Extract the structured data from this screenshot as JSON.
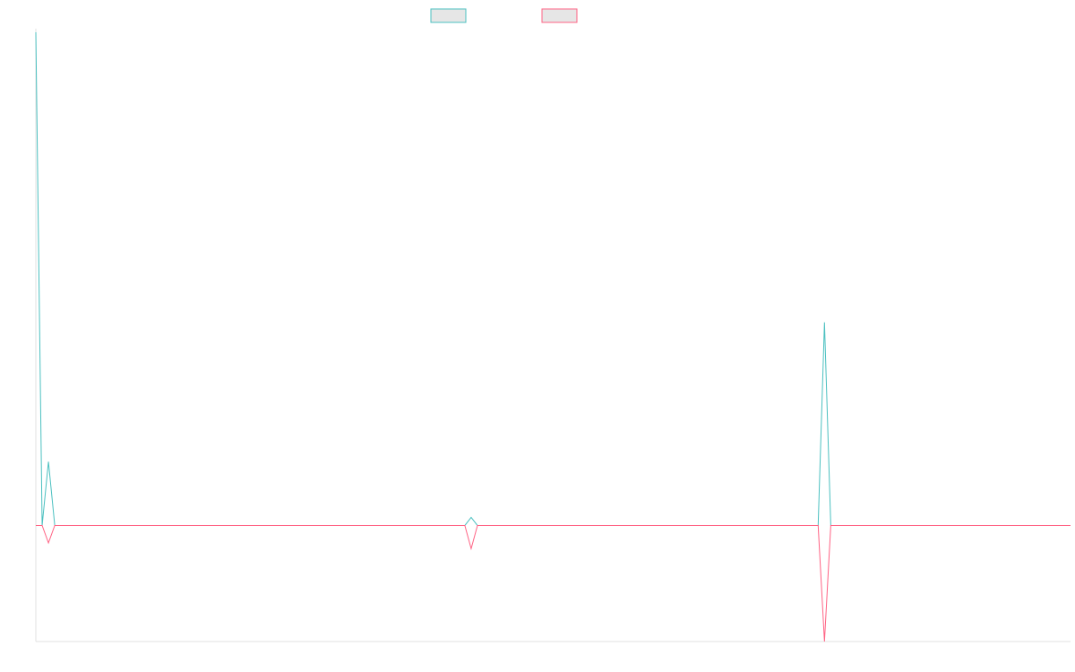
{
  "chart_data": {
    "type": "line",
    "title": "",
    "xlabel": "",
    "ylabel": "",
    "x": [
      0,
      1,
      2,
      3,
      4,
      5,
      6,
      7,
      8,
      9,
      10,
      11,
      12,
      13,
      14,
      15,
      16,
      17,
      18,
      19,
      20,
      21,
      22,
      23,
      24,
      25,
      26,
      27,
      28,
      29,
      30,
      31,
      32,
      33,
      34,
      35,
      36,
      37,
      38,
      39,
      40,
      41,
      42,
      43,
      44,
      45,
      46,
      47,
      48,
      49,
      50,
      51,
      52,
      53,
      54,
      55,
      56,
      57,
      58,
      59,
      60,
      61,
      62,
      63,
      64,
      65,
      66,
      67,
      68,
      69,
      70,
      71,
      72,
      73,
      74,
      75,
      76,
      77,
      78,
      79,
      80,
      81,
      82,
      83,
      84,
      85,
      86,
      87,
      88,
      89,
      90,
      91,
      92,
      93,
      94,
      95,
      96,
      97,
      98,
      99,
      100,
      101,
      102,
      103,
      104,
      105,
      106,
      107,
      108,
      109,
      110,
      111,
      112,
      113,
      114,
      115,
      116,
      117,
      118,
      119,
      120,
      121,
      122,
      123,
      124,
      125,
      126,
      127,
      128,
      129,
      130,
      131,
      132,
      133,
      134,
      135,
      136,
      137,
      138,
      139,
      140,
      141,
      142,
      143,
      144,
      145,
      146,
      147,
      148,
      149,
      150,
      151,
      152,
      153,
      154,
      155,
      156,
      157,
      158,
      159,
      160,
      161,
      162,
      163,
      164
    ],
    "ylim": [
      -100,
      425
    ],
    "xlim": [
      0,
      164
    ],
    "grid": false,
    "legend": "top-center",
    "series": [
      {
        "color": "#4bc0c0",
        "values": [
          425,
          0,
          55,
          0,
          0,
          0,
          0,
          0,
          0,
          0,
          0,
          0,
          0,
          0,
          0,
          0,
          0,
          0,
          0,
          0,
          0,
          0,
          0,
          0,
          0,
          0,
          0,
          0,
          0,
          0,
          0,
          0,
          0,
          0,
          0,
          0,
          0,
          0,
          0,
          0,
          0,
          0,
          0,
          0,
          0,
          0,
          0,
          0,
          0,
          0,
          0,
          0,
          0,
          0,
          0,
          0,
          0,
          0,
          0,
          0,
          0,
          0,
          0,
          0,
          0,
          0,
          0,
          0,
          0,
          7,
          0,
          0,
          0,
          0,
          0,
          0,
          0,
          0,
          0,
          0,
          0,
          0,
          0,
          0,
          0,
          0,
          0,
          0,
          0,
          0,
          0,
          0,
          0,
          0,
          0,
          0,
          0,
          0,
          0,
          0,
          0,
          0,
          0,
          0,
          0,
          0,
          0,
          0,
          0,
          0,
          0,
          0,
          0,
          0,
          0,
          0,
          0,
          0,
          0,
          0,
          0,
          0,
          0,
          0,
          0,
          175,
          0,
          0,
          0,
          0,
          0,
          0,
          0,
          0,
          0,
          0,
          0,
          0,
          0,
          0,
          0,
          0,
          0,
          0,
          0,
          0,
          0,
          0,
          0,
          0,
          0,
          0,
          0,
          0,
          0,
          0,
          0,
          0,
          0,
          0,
          0,
          0,
          0,
          0,
          0
        ]
      },
      {
        "color": "#ff6384",
        "values": [
          0,
          0,
          -15,
          0,
          0,
          0,
          0,
          0,
          0,
          0,
          0,
          0,
          0,
          0,
          0,
          0,
          0,
          0,
          0,
          0,
          0,
          0,
          0,
          0,
          0,
          0,
          0,
          0,
          0,
          0,
          0,
          0,
          0,
          0,
          0,
          0,
          0,
          0,
          0,
          0,
          0,
          0,
          0,
          0,
          0,
          0,
          0,
          0,
          0,
          0,
          0,
          0,
          0,
          0,
          0,
          0,
          0,
          0,
          0,
          0,
          0,
          0,
          0,
          0,
          0,
          0,
          0,
          0,
          0,
          -20,
          0,
          0,
          0,
          0,
          0,
          0,
          0,
          0,
          0,
          0,
          0,
          0,
          0,
          0,
          0,
          0,
          0,
          0,
          0,
          0,
          0,
          0,
          0,
          0,
          0,
          0,
          0,
          0,
          0,
          0,
          0,
          0,
          0,
          0,
          0,
          0,
          0,
          0,
          0,
          0,
          0,
          0,
          0,
          0,
          0,
          0,
          0,
          0,
          0,
          0,
          0,
          0,
          0,
          0,
          0,
          -100,
          0,
          0,
          0,
          0,
          0,
          0,
          0,
          0,
          0,
          0,
          0,
          0,
          0,
          0,
          0,
          0,
          0,
          0,
          0,
          0,
          0,
          0,
          0,
          0,
          0,
          0,
          0,
          0,
          0,
          0,
          0,
          0,
          0,
          0,
          0,
          0,
          0,
          0,
          0
        ]
      }
    ]
  }
}
